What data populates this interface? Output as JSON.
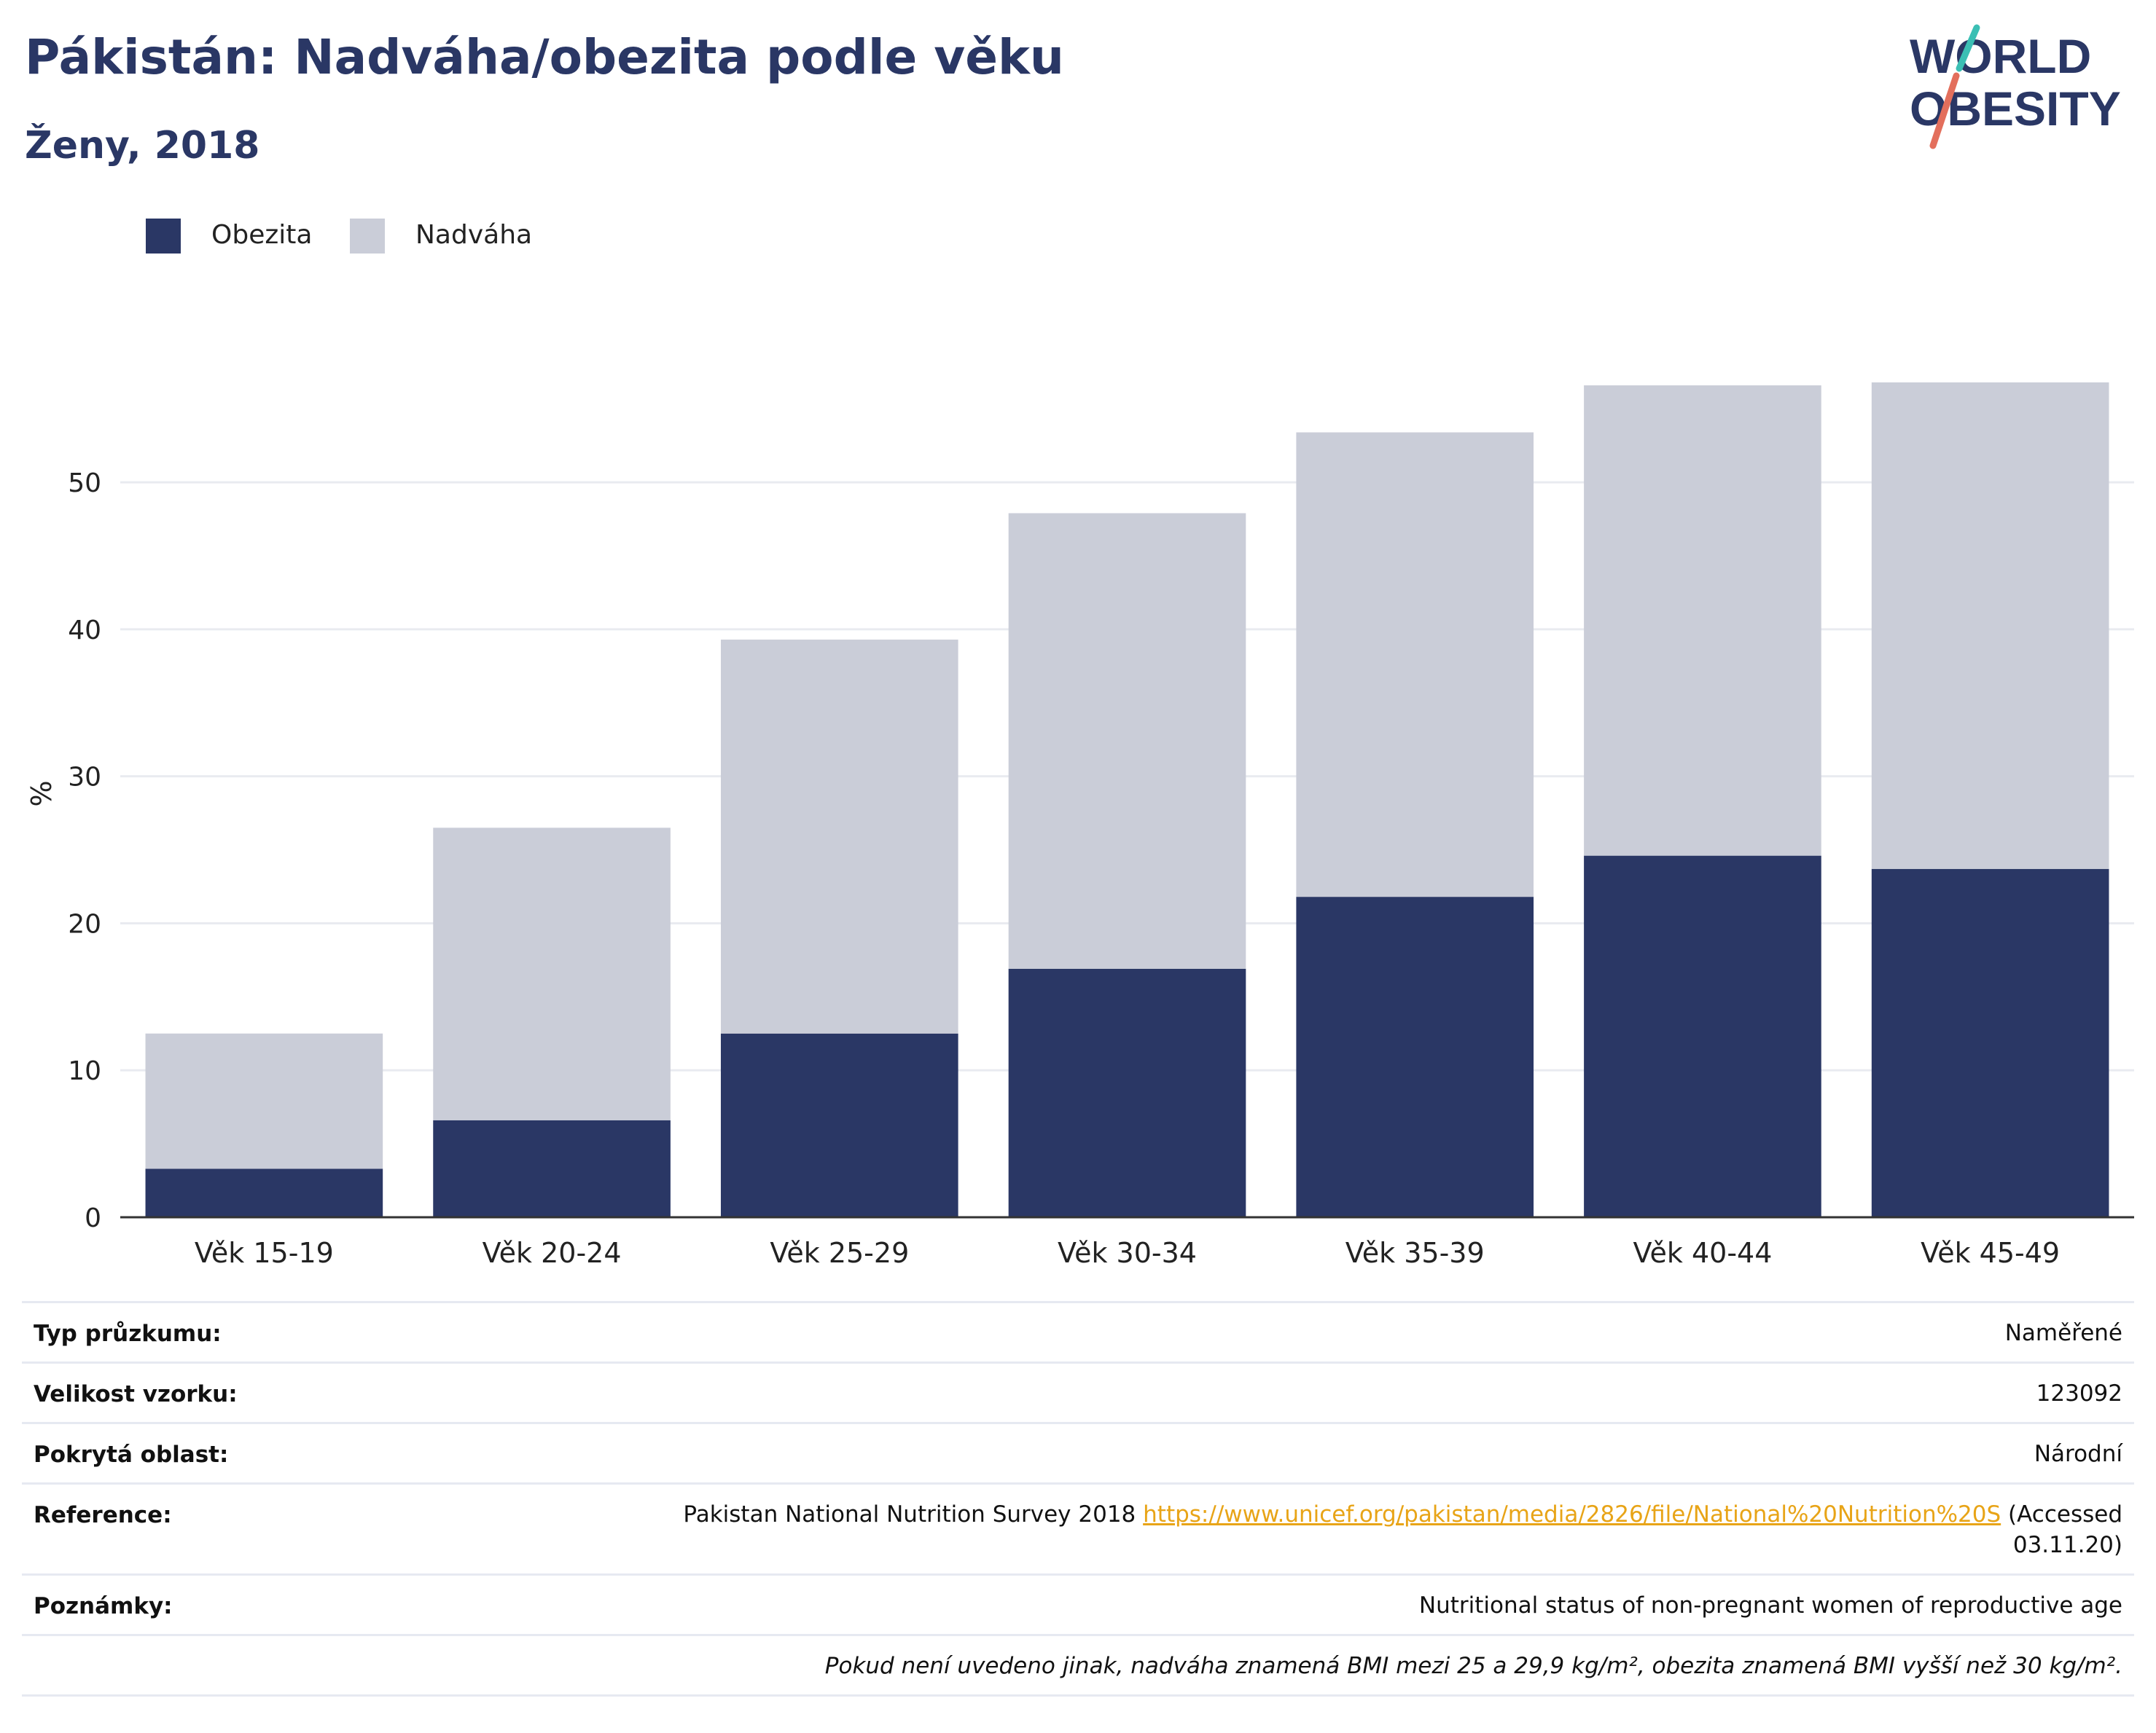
{
  "header": {
    "title": "Pákistán: Nadváha/obezita podle věku",
    "subtitle": "Ženy, 2018"
  },
  "logo": {
    "line1": "WORLD",
    "line2": "OBESITY",
    "colors": {
      "text": "#2a3765",
      "slash_top": "#3bbfb4",
      "slash_bottom": "#e36f5c"
    }
  },
  "legend": [
    {
      "label": "Obezita",
      "color": "#2a3765"
    },
    {
      "label": "Nadváha",
      "color": "#cacdd8"
    }
  ],
  "chart_data": {
    "type": "bar",
    "stacked": true,
    "categories": [
      "Věk 15-19",
      "Věk 20-24",
      "Věk 25-29",
      "Věk 30-34",
      "Věk 35-39",
      "Věk 40-44",
      "Věk 45-49"
    ],
    "series": [
      {
        "name": "Obezita",
        "color": "#2a3765",
        "values": [
          3.3,
          6.6,
          12.5,
          16.9,
          21.8,
          24.6,
          23.7
        ]
      },
      {
        "name": "Nadváha",
        "color": "#cacdd8",
        "values": [
          9.2,
          19.9,
          26.8,
          31.0,
          31.6,
          32.0,
          33.1
        ]
      }
    ],
    "ylabel": "%",
    "yticks": [
      0,
      10,
      20,
      30,
      40,
      50
    ],
    "ylim": [
      0,
      62
    ],
    "grid": true,
    "legend_position": "top-left"
  },
  "info": {
    "rows": [
      {
        "label": "Typ průzkumu:",
        "value": "Naměřené"
      },
      {
        "label": "Velikost vzorku:",
        "value": "123092"
      },
      {
        "label": "Pokrytá oblast:",
        "value": "Národní"
      },
      {
        "label": "Reference:",
        "value_prefix": "Pakistan National Nutrition Survey 2018",
        "link": "https://www.unicef.org/pakistan/media/2826/file/National%20Nutrition%20S",
        "value_suffix_1": "(Accessed",
        "value_suffix_2": "03.11.20)"
      },
      {
        "label": "Poznámky:",
        "value": "Nutritional status of non-pregnant women of reproductive age"
      }
    ],
    "footnote": "Pokud není uvedeno jinak, nadváha znamená BMI mezi 25 a 29,9 kg/m², obezita znamená BMI vyšší než 30 kg/m²."
  }
}
